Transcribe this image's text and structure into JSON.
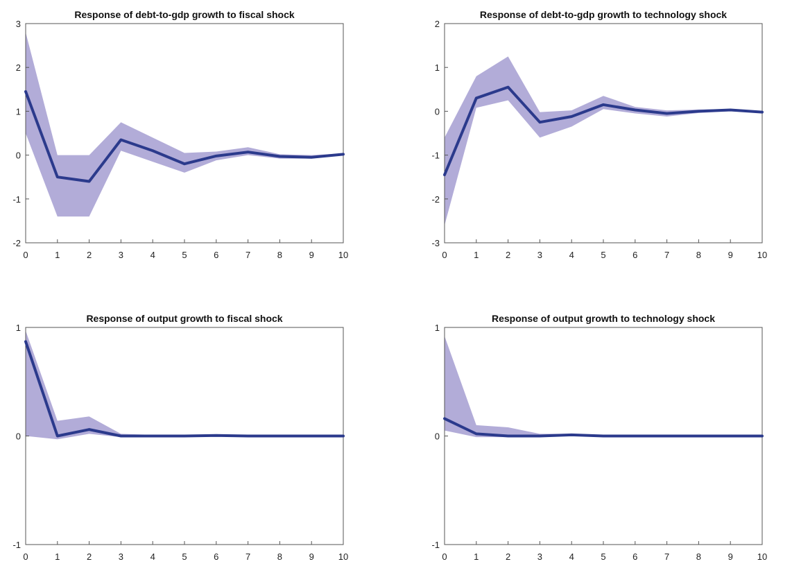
{
  "chart_data": [
    {
      "type": "line",
      "title": "Response of debt-to-gdp growth to fiscal shock",
      "x": [
        0,
        1,
        2,
        3,
        4,
        5,
        6,
        7,
        8,
        9,
        10
      ],
      "xticks": [
        "0",
        "1",
        "2",
        "3",
        "4",
        "5",
        "6",
        "7",
        "8",
        "9",
        "10"
      ],
      "xlim": [
        0,
        10
      ],
      "ylim": [
        -2,
        3
      ],
      "yticks": [
        "-2",
        "-1",
        "0",
        "1",
        "2",
        "3"
      ],
      "ytick_values": [
        -2,
        -1,
        0,
        1,
        2,
        3
      ],
      "series": [
        {
          "values": [
            1.45,
            -0.5,
            -0.6,
            0.35,
            0.1,
            -0.2,
            -0.02,
            0.07,
            -0.03,
            -0.05,
            0.02
          ]
        }
      ],
      "band": {
        "upper": [
          2.8,
          0.0,
          0.0,
          0.75,
          0.4,
          0.05,
          0.08,
          0.18,
          0.02,
          0.0,
          0.04
        ],
        "lower": [
          0.5,
          -1.4,
          -1.4,
          0.1,
          -0.15,
          -0.4,
          -0.12,
          0.0,
          -0.08,
          -0.08,
          0.0
        ]
      },
      "grid": false,
      "colors": {
        "line": "#2b3a8c",
        "band": "#aaa3d4"
      }
    },
    {
      "type": "line",
      "title": "Response of debt-to-gdp growth to technology shock",
      "x": [
        0,
        1,
        2,
        3,
        4,
        5,
        6,
        7,
        8,
        9,
        10
      ],
      "xticks": [
        "0",
        "1",
        "2",
        "3",
        "4",
        "5",
        "6",
        "7",
        "8",
        "9",
        "10"
      ],
      "xlim": [
        0,
        10
      ],
      "ylim": [
        -3,
        2
      ],
      "yticks": [
        "-3",
        "-2",
        "-1",
        "0",
        "1",
        "2"
      ],
      "ytick_values": [
        -3,
        -2,
        -1,
        0,
        1,
        2
      ],
      "series": [
        {
          "values": [
            -1.45,
            0.3,
            0.55,
            -0.25,
            -0.12,
            0.15,
            0.03,
            -0.05,
            0.0,
            0.03,
            -0.02
          ]
        }
      ],
      "band": {
        "upper": [
          -0.6,
          0.8,
          1.25,
          -0.02,
          0.02,
          0.35,
          0.1,
          0.02,
          0.04,
          0.05,
          0.0
        ],
        "lower": [
          -2.6,
          0.08,
          0.25,
          -0.6,
          -0.35,
          0.05,
          -0.05,
          -0.12,
          -0.04,
          0.0,
          -0.04
        ]
      },
      "grid": false,
      "colors": {
        "line": "#2b3a8c",
        "band": "#aaa3d4"
      }
    },
    {
      "type": "line",
      "title": "Response of output growth to fiscal shock",
      "x": [
        0,
        1,
        2,
        3,
        4,
        5,
        6,
        7,
        8,
        9,
        10
      ],
      "xticks": [
        "0",
        "1",
        "2",
        "3",
        "4",
        "5",
        "6",
        "7",
        "8",
        "9",
        "10"
      ],
      "xlim": [
        0,
        10
      ],
      "ylim": [
        -1,
        1
      ],
      "yticks": [
        "-1",
        "0",
        "1"
      ],
      "ytick_values": [
        -1,
        0,
        1
      ],
      "series": [
        {
          "values": [
            0.87,
            0.0,
            0.06,
            0.0,
            0.0,
            0.0,
            0.005,
            0.0,
            0.0,
            0.0,
            0.0
          ]
        }
      ],
      "band": {
        "upper": [
          0.97,
          0.14,
          0.18,
          0.02,
          0.01,
          0.01,
          0.015,
          0.01,
          0.005,
          0.005,
          0.005
        ],
        "lower": [
          0.0,
          -0.03,
          0.02,
          -0.01,
          -0.01,
          -0.005,
          0.0,
          -0.005,
          -0.005,
          -0.005,
          -0.005
        ]
      },
      "grid": false,
      "colors": {
        "line": "#2b3a8c",
        "band": "#aaa3d4"
      }
    },
    {
      "type": "line",
      "title": "Response of output growth to technology shock",
      "x": [
        0,
        1,
        2,
        3,
        4,
        5,
        6,
        7,
        8,
        9,
        10
      ],
      "xticks": [
        "0",
        "1",
        "2",
        "3",
        "4",
        "5",
        "6",
        "7",
        "8",
        "9",
        "10"
      ],
      "xlim": [
        0,
        10
      ],
      "ylim": [
        -1,
        1
      ],
      "yticks": [
        "-1",
        "0",
        "1"
      ],
      "ytick_values": [
        -1,
        0,
        1
      ],
      "series": [
        {
          "values": [
            0.16,
            0.02,
            0.0,
            0.0,
            0.01,
            0.0,
            0.0,
            0.0,
            0.0,
            0.0,
            0.0
          ]
        }
      ],
      "band": {
        "upper": [
          0.92,
          0.1,
          0.08,
          0.02,
          0.02,
          0.01,
          0.005,
          0.005,
          0.005,
          0.005,
          0.005
        ],
        "lower": [
          0.05,
          -0.01,
          -0.01,
          -0.01,
          0.0,
          -0.005,
          -0.005,
          -0.005,
          -0.005,
          -0.005,
          -0.005
        ]
      },
      "grid": false,
      "colors": {
        "line": "#2b3a8c",
        "band": "#aaa3d4"
      }
    }
  ]
}
